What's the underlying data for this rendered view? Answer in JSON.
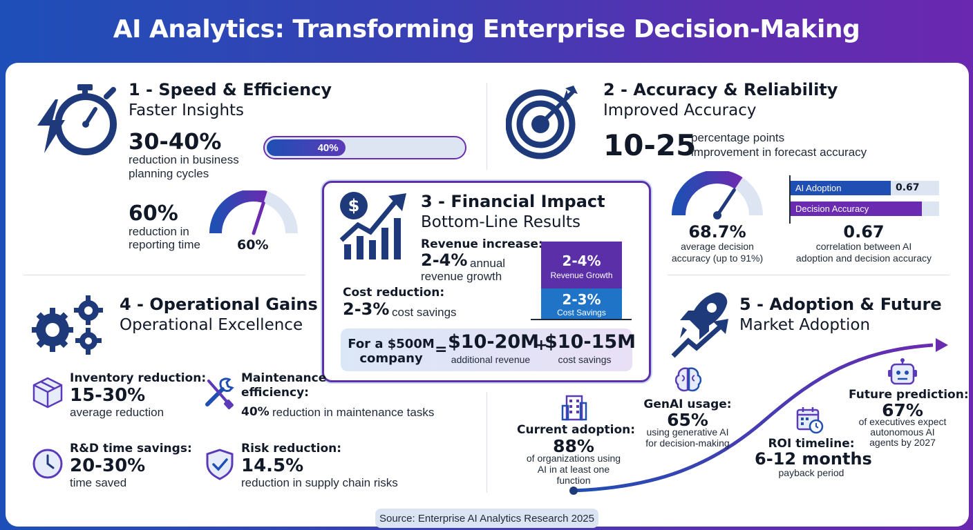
{
  "title": "AI Analytics: Transforming Enterprise Decision-Making",
  "colors": {
    "blue": "#1f4fb3",
    "purple": "#6a2bb0",
    "navy": "#1f3a7a",
    "light": "#dde5f3"
  },
  "s1": {
    "title": "1 - Speed & Efficiency",
    "subtitle": "Faster Insights",
    "stat1": "30-40%",
    "stat1_desc_1": "reduction in business",
    "stat1_desc_2": "planning cycles",
    "bar_label": "40%",
    "bar_fill": 0.4,
    "stat2": "60%",
    "stat2_desc_1": "reduction in",
    "stat2_desc_2": "reporting time",
    "gauge_label": "60%",
    "gauge_value": 0.6,
    "icon": "stopwatch-lightning-icon"
  },
  "s2": {
    "title": "2 - Accuracy & Reliability",
    "subtitle": "Improved Accuracy",
    "stat": "10-25",
    "desc_1": "percentage points",
    "desc_2": "improvement in forecast accuracy",
    "gauge_value": 0.687,
    "gauge_stat": "68.7%",
    "gauge_desc_1": "average decision",
    "gauge_desc_2": "accuracy (up to 91%)",
    "bar1_label": "AI Adoption",
    "bar1_value": "0.67",
    "bar2_label": "Decision Accuracy",
    "corr_stat": "0.67",
    "corr_desc_1": "correlation between AI",
    "corr_desc_2": "adoption and decision accuracy",
    "icon": "target-arrow-icon"
  },
  "s3": {
    "title": "3 - Financial Impact",
    "subtitle": "Bottom-Line Results",
    "rev_label": "Revenue increase:",
    "rev_stat": "2-4%",
    "rev_desc_1": "annual",
    "rev_desc_2": "revenue growth",
    "cost_label": "Cost reduction:",
    "cost_stat": "2-3%",
    "cost_desc": "cost savings",
    "box1_stat": "2-4%",
    "box1_label": "Revenue Growth",
    "box2_stat": "2-3%",
    "box2_label": "Cost Savings",
    "eq_label_1": "For a $500M",
    "eq_label_2": "company",
    "eq_equals": "=",
    "eq_rev": "$10-20M",
    "eq_rev_desc": "additional revenue",
    "eq_plus": "+",
    "eq_cost": "$10-15M",
    "eq_cost_desc": "cost savings",
    "icon": "dollar-growth-chart-icon"
  },
  "s4": {
    "title": "4 - Operational Gains",
    "subtitle": "Operational Excellence",
    "inv_label": "Inventory reduction:",
    "inv_stat": "15-30%",
    "inv_desc": "average reduction",
    "maint_label_1": "Maintenance",
    "maint_label_2": "efficiency:",
    "maint_stat": "40%",
    "maint_desc": "reduction in maintenance tasks",
    "rd_label": "R&D time savings:",
    "rd_stat": "20-30%",
    "rd_desc": "time saved",
    "risk_label": "Risk reduction:",
    "risk_stat": "14.5%",
    "risk_desc": "reduction in supply chain risks",
    "icon": "gears-icon"
  },
  "s5": {
    "title": "5 - Adoption & Future",
    "subtitle": "Market Adoption",
    "cur_label": "Current adoption:",
    "cur_stat": "88%",
    "cur_desc_1": "of organizations using",
    "cur_desc_2": "AI in at least one",
    "cur_desc_3": "function",
    "gen_label": "GenAI usage:",
    "gen_stat": "65%",
    "gen_desc_1": "using generative AI",
    "gen_desc_2": "for decision-making",
    "roi_label": "ROI timeline:",
    "roi_stat": "6-12 months",
    "roi_desc": "payback period",
    "fut_label": "Future prediction:",
    "fut_stat": "67%",
    "fut_desc_1": "of executives expect",
    "fut_desc_2": "autonomous AI",
    "fut_desc_3": "agents by 2027",
    "icon": "rocket-icon"
  },
  "source": "Source: Enterprise AI Analytics Research 2025"
}
